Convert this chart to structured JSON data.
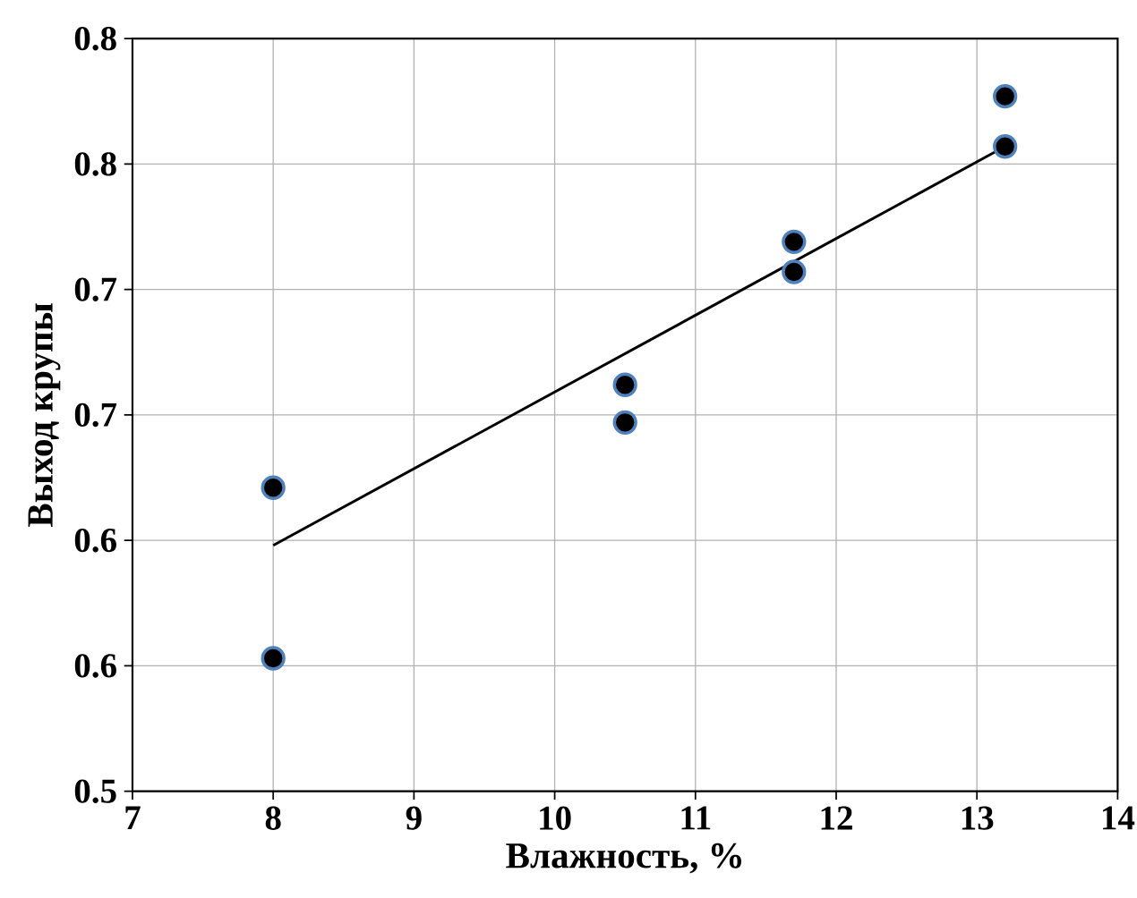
{
  "chart_data": {
    "type": "scatter",
    "xlabel": "Влажность, %",
    "ylabel": "Выход крупы",
    "xlim": [
      7,
      14
    ],
    "xticks": [
      7,
      8,
      9,
      10,
      11,
      12,
      13,
      14
    ],
    "ylim": [
      0.5,
      0.8
    ],
    "yticks": [
      0.5,
      {
        "value": 0.55,
        "label": "0.6"
      },
      0.6,
      {
        "value": 0.65,
        "label": "0.7"
      },
      0.7,
      {
        "value": 0.75,
        "label": "0.8"
      },
      0.8
    ],
    "grid": true,
    "marker": "circle",
    "series": [
      {
        "color": "#000000",
        "x": [
          8,
          8,
          10.5,
          10.5,
          11.7,
          11.7,
          13.2,
          13.2
        ],
        "values": [
          0.621,
          0.553,
          0.662,
          0.647,
          0.719,
          0.707,
          0.777,
          0.757
        ]
      },
      {
        "type": "line",
        "color": "#000000",
        "marker": "none",
        "x": [
          8,
          13.2
        ],
        "values": [
          0.598,
          0.757
        ]
      }
    ]
  }
}
